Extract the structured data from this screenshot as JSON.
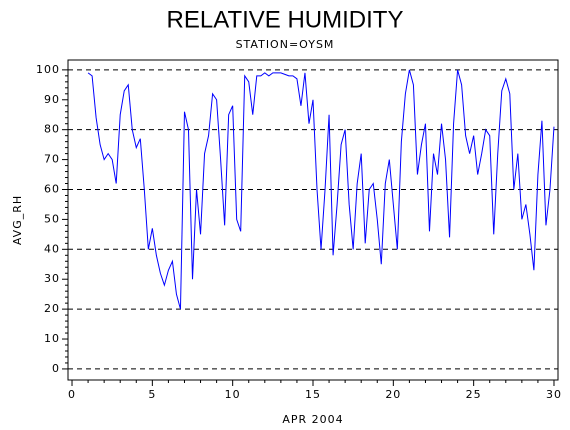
{
  "chart_data": {
    "type": "line",
    "title": "RELATIVE HUMIDITY",
    "subtitle": "STATION=OYSM",
    "x_label": "APR 2004",
    "y_label": "AVG_RH",
    "xlim": [
      -0.25,
      30.25
    ],
    "ylim": [
      -3.7,
      103.3
    ],
    "xticks": [
      0,
      5,
      10,
      15,
      20,
      25,
      30
    ],
    "yticks": [
      0,
      10,
      20,
      30,
      40,
      50,
      60,
      70,
      80,
      90,
      100
    ],
    "grid_lines": [
      0,
      20,
      40,
      60,
      80,
      100
    ],
    "x": [
      1.0,
      1.25,
      1.5,
      1.75,
      2.0,
      2.25,
      2.5,
      2.75,
      3.0,
      3.25,
      3.5,
      3.75,
      4.0,
      4.25,
      4.5,
      4.75,
      5.0,
      5.25,
      5.5,
      5.75,
      6.0,
      6.25,
      6.5,
      6.75,
      7.0,
      7.25,
      7.5,
      7.75,
      8.0,
      8.25,
      8.5,
      8.75,
      9.0,
      9.25,
      9.5,
      9.75,
      10.0,
      10.25,
      10.5,
      10.75,
      11.0,
      11.25,
      11.5,
      11.75,
      12.0,
      12.25,
      12.5,
      12.75,
      13.0,
      13.25,
      13.5,
      13.75,
      14.0,
      14.25,
      14.5,
      14.75,
      15.0,
      15.25,
      15.5,
      15.75,
      16.0,
      16.25,
      16.5,
      16.75,
      17.0,
      17.25,
      17.5,
      17.75,
      18.0,
      18.25,
      18.5,
      18.75,
      19.0,
      19.25,
      19.5,
      19.75,
      20.0,
      20.25,
      20.5,
      20.75,
      21.0,
      21.25,
      21.5,
      21.75,
      22.0,
      22.25,
      22.5,
      22.75,
      23.0,
      23.25,
      23.5,
      23.75,
      24.0,
      24.25,
      24.5,
      24.75,
      25.0,
      25.25,
      25.5,
      25.75,
      26.0,
      26.25,
      26.5,
      26.75,
      27.0,
      27.25,
      27.5,
      27.75,
      28.0,
      28.25,
      28.5,
      28.75,
      29.0,
      29.25,
      29.5,
      29.75,
      30.0
    ],
    "series": [
      {
        "name": "AVG_RH",
        "color": "#0000ff",
        "values": [
          99,
          98,
          84,
          75,
          70,
          72,
          70,
          62,
          85,
          93,
          95,
          80,
          74,
          77,
          60,
          40,
          47,
          38,
          32,
          28,
          33,
          36,
          25,
          20,
          86,
          80,
          30,
          60,
          45,
          72,
          78,
          92,
          90,
          70,
          48,
          85,
          88,
          50,
          46,
          98,
          96,
          85,
          98,
          98,
          99,
          98,
          99,
          99,
          99,
          98.5,
          98,
          98,
          97,
          88,
          99,
          82,
          90,
          60,
          40,
          60,
          85,
          38,
          55,
          75,
          80,
          55,
          40,
          62,
          72,
          42,
          60,
          62,
          50,
          35,
          62,
          70,
          55,
          40,
          76,
          92,
          100,
          95,
          65,
          75,
          82,
          46,
          72,
          65,
          82,
          70,
          44,
          82,
          100,
          95,
          78,
          72,
          78,
          65,
          72,
          80,
          78,
          45,
          72,
          93,
          97,
          92,
          60,
          72,
          50,
          55,
          45,
          33,
          65,
          83,
          48,
          60,
          81
        ]
      }
    ]
  }
}
